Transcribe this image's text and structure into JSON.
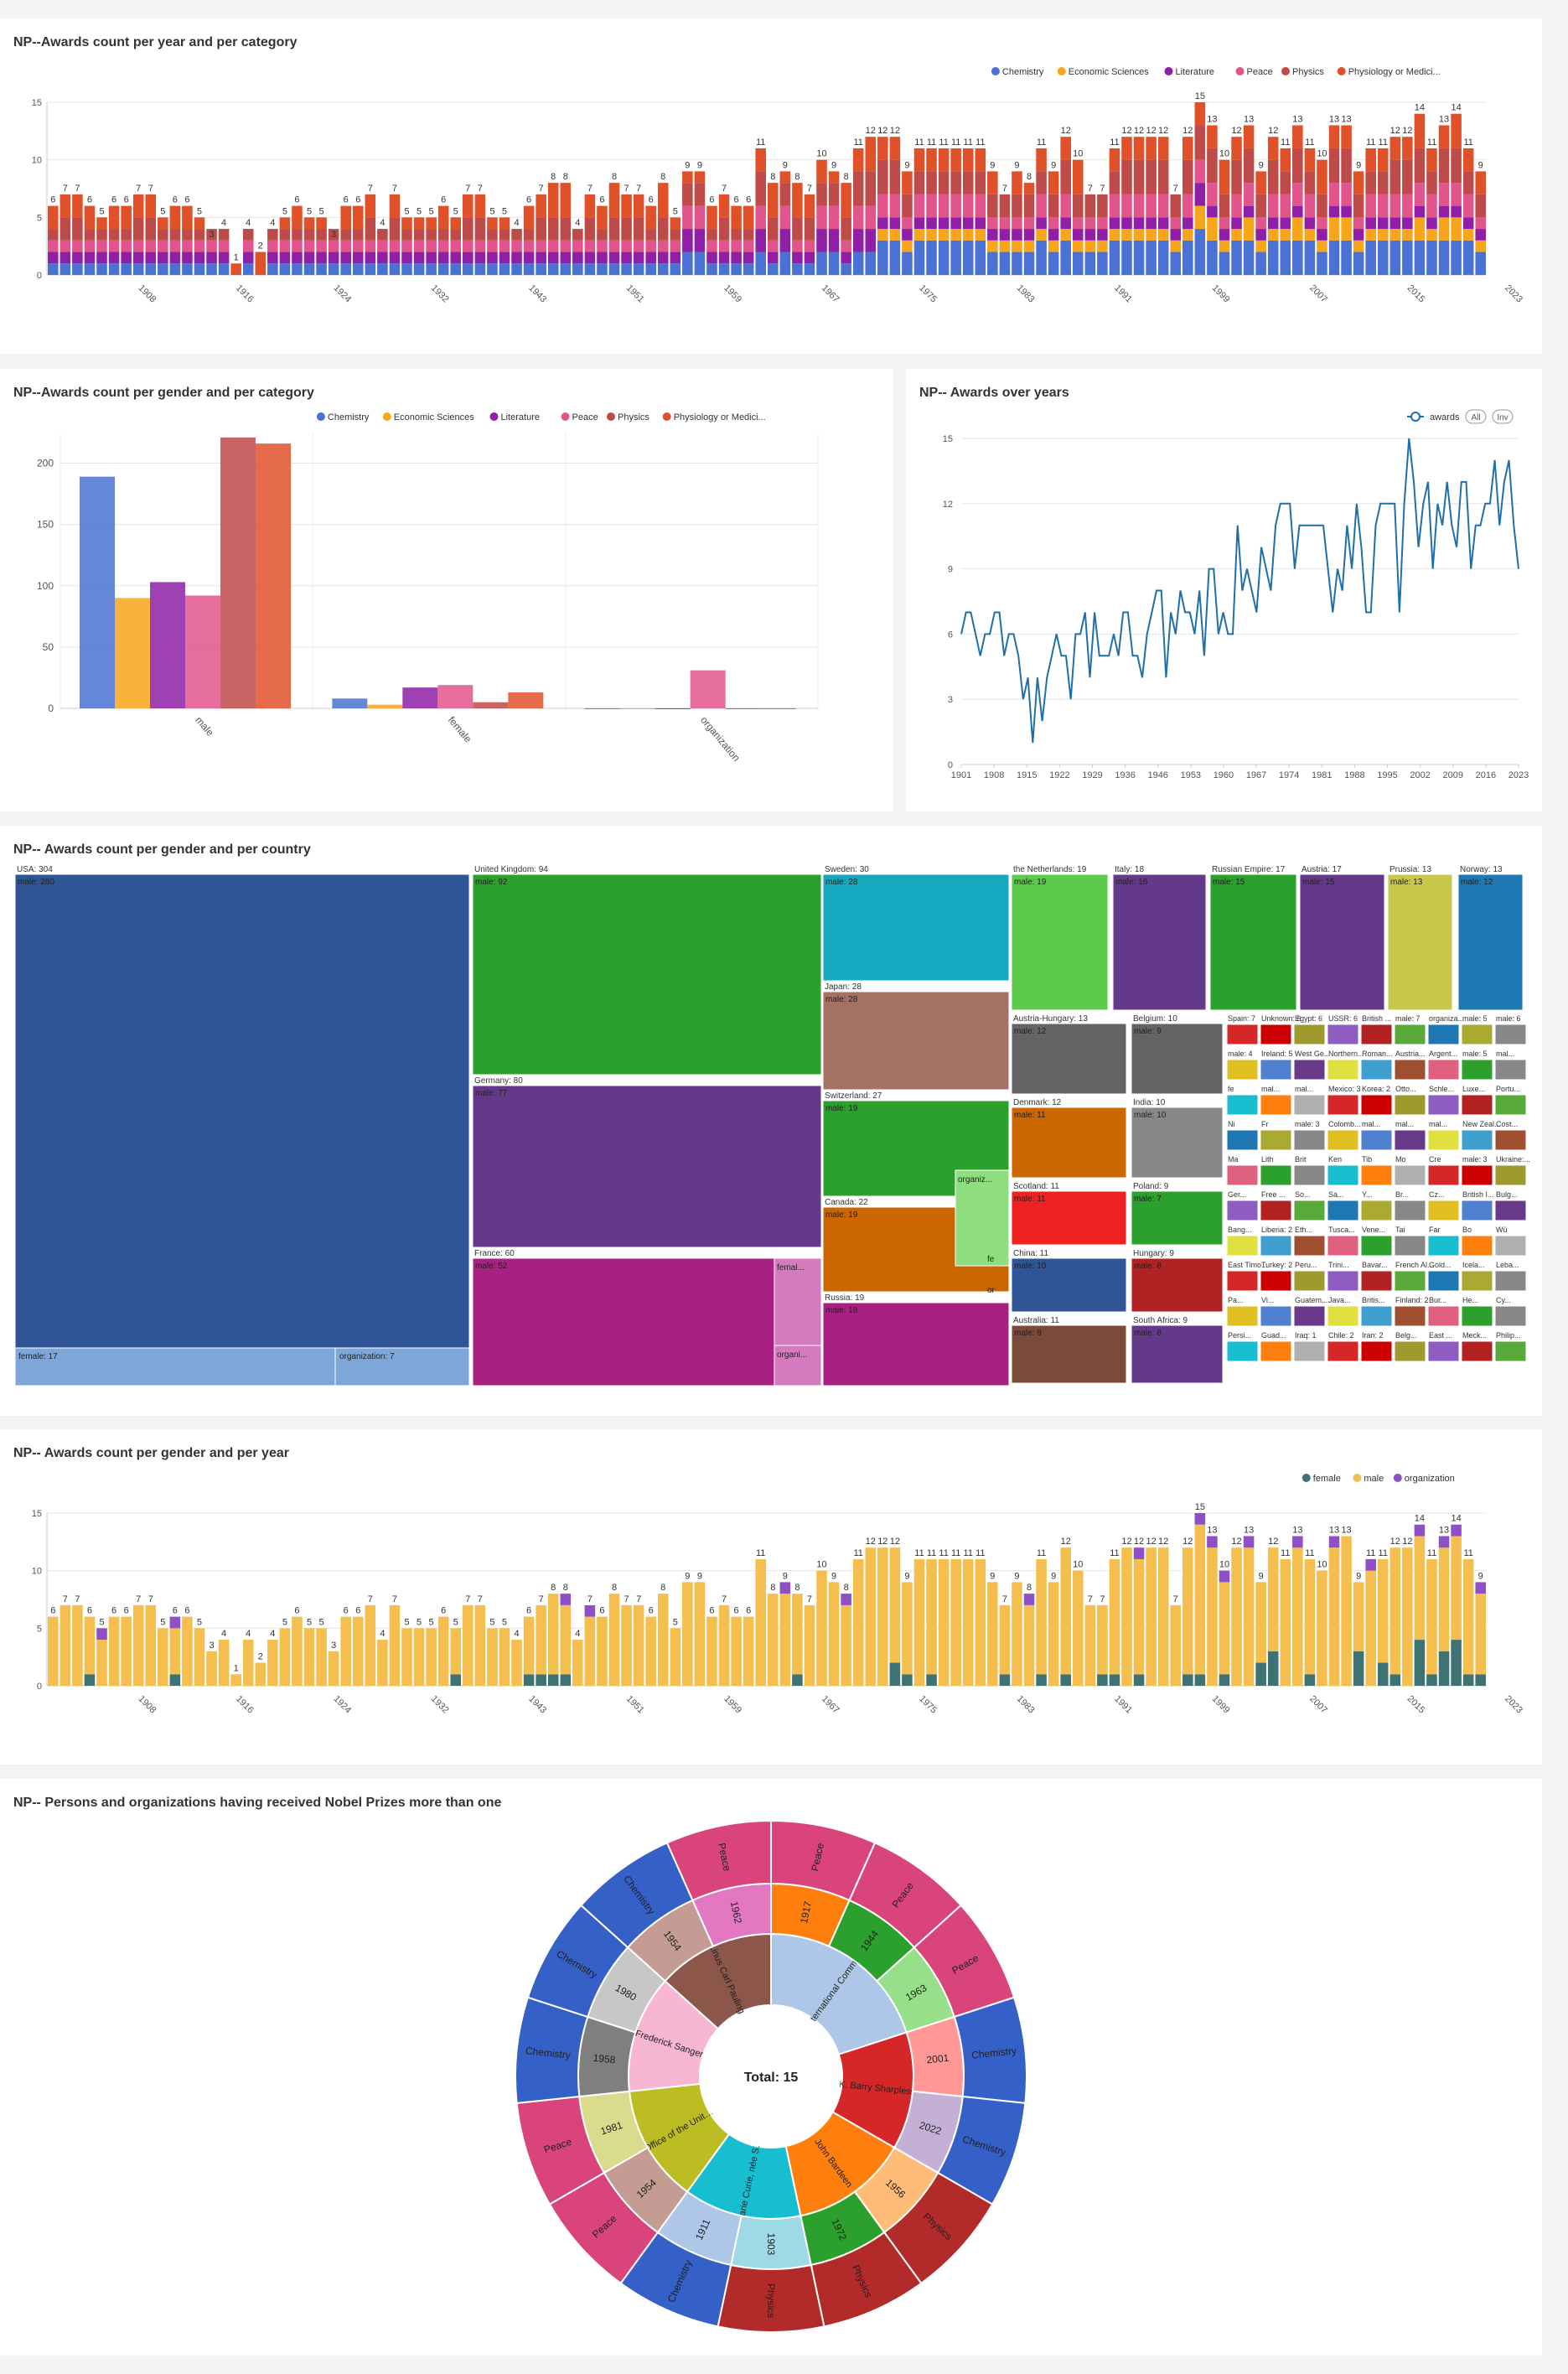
{
  "colors": {
    "Chemistry": "#4a72d4",
    "Economic Sciences": "#f7a61b",
    "Literature": "#8e1fa6",
    "Peace": "#e2558c",
    "Physics": "#bf4a4a",
    "Physiology or Medicine": "#e0512a",
    "female": "#3f7373",
    "male": "#f5bf4f",
    "organization": "#8f4fc7"
  },
  "chart_data": [
    {
      "id": "awards-year-category",
      "title": "NP--Awards count per year and per category",
      "type": "bar",
      "stacked": true,
      "legend": [
        "Chemistry",
        "Economic Sciences",
        "Literature",
        "Peace",
        "Physics",
        "Physiology or Medici..."
      ],
      "legend_placement": "top-right",
      "ylim": [
        0,
        15
      ],
      "yticks": [
        "0",
        "5",
        "10",
        "15"
      ],
      "xticks": [
        "1908",
        "1916",
        "1924",
        "1932",
        "1943",
        "1951",
        "1959",
        "1967",
        "1975",
        "1983",
        "1991",
        "1999",
        "2007",
        "2015",
        "2023"
      ],
      "totals": [
        6,
        7,
        7,
        6,
        5,
        6,
        6,
        7,
        7,
        5,
        6,
        6,
        5,
        3,
        4,
        1,
        4,
        2,
        4,
        5,
        6,
        5,
        5,
        3,
        6,
        6,
        7,
        4,
        7,
        5,
        5,
        5,
        6,
        5,
        7,
        7,
        5,
        5,
        4,
        6,
        7,
        8,
        8,
        4,
        7,
        6,
        8,
        7,
        7,
        6,
        8,
        5,
        9,
        9,
        6,
        7,
        6,
        6,
        11,
        8,
        9,
        8,
        7,
        10,
        9,
        8,
        11,
        12,
        12,
        12,
        9,
        11,
        11,
        11,
        11,
        11,
        11,
        9,
        7,
        9,
        8,
        11,
        9,
        12,
        10,
        7,
        7,
        11,
        12,
        12,
        12,
        12,
        7,
        12,
        15,
        13,
        10,
        12,
        13,
        9,
        12,
        11,
        13,
        11,
        10,
        13,
        13,
        9,
        11,
        11,
        12,
        12,
        14,
        11,
        13,
        14,
        11,
        9
      ]
    },
    {
      "id": "awards-gender-category",
      "title": "NP--Awards count per gender and per category",
      "type": "bar",
      "categories": [
        "male",
        "female",
        "organization"
      ],
      "legend": [
        "Chemistry",
        "Economic Sciences",
        "Literature",
        "Peace",
        "Physics",
        "Physiology or Medici..."
      ],
      "legend_placement": "top-right",
      "ylim": [
        0,
        225
      ],
      "yticks": [
        "0",
        "50",
        "100",
        "150",
        "200"
      ],
      "series": [
        {
          "name": "Chemistry",
          "values": [
            189,
            8,
            0
          ]
        },
        {
          "name": "Economic Sciences",
          "values": [
            90,
            3,
            0
          ]
        },
        {
          "name": "Literature",
          "values": [
            103,
            17,
            0
          ]
        },
        {
          "name": "Peace",
          "values": [
            92,
            19,
            31
          ]
        },
        {
          "name": "Physics",
          "values": [
            221,
            5,
            0
          ]
        },
        {
          "name": "Physiology or Medicine",
          "values": [
            216,
            13,
            0
          ]
        }
      ]
    },
    {
      "id": "awards-over-years",
      "title": "NP-- Awards over years",
      "type": "line",
      "legend": [
        "awards"
      ],
      "legend_buttons": [
        "All",
        "Inv"
      ],
      "ylim": [
        0,
        15
      ],
      "yticks": [
        "0",
        "3",
        "6",
        "9",
        "12",
        "15"
      ],
      "xticks": [
        "1901",
        "1908",
        "1915",
        "1922",
        "1929",
        "1936",
        "1946",
        "1953",
        "1960",
        "1967",
        "1974",
        "1981",
        "1988",
        "1995",
        "2002",
        "2009",
        "2016",
        "2023"
      ],
      "values": [
        6,
        7,
        7,
        6,
        5,
        6,
        6,
        7,
        7,
        5,
        6,
        6,
        5,
        3,
        4,
        1,
        4,
        2,
        4,
        5,
        6,
        5,
        5,
        3,
        6,
        6,
        7,
        4,
        7,
        5,
        5,
        5,
        6,
        5,
        7,
        7,
        5,
        5,
        4,
        6,
        7,
        8,
        8,
        4,
        7,
        6,
        8,
        7,
        7,
        6,
        8,
        5,
        9,
        9,
        6,
        7,
        6,
        6,
        11,
        8,
        9,
        8,
        7,
        10,
        9,
        8,
        11,
        12,
        12,
        12,
        9,
        11,
        11,
        11,
        11,
        11,
        11,
        9,
        7,
        9,
        8,
        11,
        9,
        12,
        10,
        7,
        7,
        11,
        12,
        12,
        12,
        12,
        7,
        12,
        15,
        13,
        10,
        12,
        13,
        9,
        12,
        11,
        13,
        11,
        10,
        13,
        13,
        9,
        11,
        11,
        12,
        12,
        14,
        11,
        13,
        14,
        11,
        9
      ]
    },
    {
      "id": "treemap-gender-country",
      "title": "NP-- Awards count per gender and per country",
      "type": "treemap",
      "big_boxes": [
        {
          "label": "USA: 304",
          "children": [
            "male: 280",
            "female: 17",
            "organization: 7"
          ],
          "color": "#2f5597"
        },
        {
          "label": "United Kingdom: 94",
          "children": [
            "male: 92"
          ],
          "color": "#2ca02c"
        },
        {
          "label": "Germany: 80",
          "children": [
            "male: 77"
          ],
          "color": "#65398a"
        },
        {
          "label": "France: 60",
          "children": [
            "male: 52",
            "femal...",
            "organi..."
          ],
          "color": "#a82082"
        },
        {
          "label": "Sweden: 30",
          "children": [
            "male: 28"
          ],
          "color": "#17a9bf"
        },
        {
          "label": "Japan: 28",
          "children": [
            "male: 28"
          ],
          "color": "#a57165"
        },
        {
          "label": "Switzerland: 27",
          "children": [
            "male: 19",
            "organiz..."
          ],
          "color": "#2ca02c"
        },
        {
          "label": "Canada: 22",
          "children": [
            "male: 19",
            "fe",
            "or"
          ],
          "color": "#cc6600"
        },
        {
          "label": "Russia: 19",
          "children": [
            "male: 18"
          ],
          "color": "#a82082"
        }
      ],
      "medium_boxes": [
        {
          "label": "the Netherlands: 19",
          "child": "male: 19",
          "color": "#5bc94a"
        },
        {
          "label": "Italy: 18",
          "child": "male: 16",
          "color": "#65398a"
        },
        {
          "label": "Russian Empire: 17",
          "child": "male: 15",
          "color": "#2ca02c"
        },
        {
          "label": "Austria: 17",
          "child": "male: 15",
          "color": "#65398a"
        },
        {
          "label": "Prussia: 13",
          "child": "male: 13",
          "color": "#c9c84a"
        },
        {
          "label": "Norway: 13",
          "child": "male: 12",
          "color": "#1f77b4"
        },
        {
          "label": "Austria-Hungary: 13",
          "child": "male: 12",
          "color": "#646464"
        },
        {
          "label": "Belgium: 10",
          "child": "male: 9",
          "color": "#646464"
        },
        {
          "label": "Denmark: 12",
          "child": "male: 11",
          "color": "#cc6600"
        },
        {
          "label": "India: 10",
          "child": "male: 10",
          "color": "#888888"
        },
        {
          "label": "Scotland: 11",
          "child": "male: 11",
          "color": "#ee2222"
        },
        {
          "label": "Poland: 9",
          "child": "male: 7",
          "color": "#2ca02c"
        },
        {
          "label": "China: 11",
          "child": "male: 10",
          "color": "#2f5597"
        },
        {
          "label": "Hungary: 9",
          "child": "male: 8",
          "color": "#b22222"
        },
        {
          "label": "Australia: 11",
          "child": "male: 9",
          "color": "#7a4a3a"
        },
        {
          "label": "South Africa: 9",
          "child": "male: 8",
          "color": "#65398a"
        }
      ],
      "small_labels": [
        "Spain: 7",
        "Unknown: 6",
        "Egypt: 6",
        "USSR: 6",
        "British ...",
        "male: 7",
        "organiza...",
        "male: 5",
        "male: 6",
        "male: 4",
        "Ireland: 5",
        "West Ge...",
        "Northern...",
        "Roman...",
        "Austria...",
        "Argent...",
        "male: 5",
        "mal...",
        "fe",
        "mal...",
        "mal...",
        "Mexico: 3",
        "Korea: 2",
        "Otto...",
        "Schle...",
        "Luxe...",
        "Portu...",
        "Ni",
        "Fr",
        "male: 3",
        "Colomb...",
        "mal...",
        "mal...",
        "mal...",
        "New Zeal...",
        "Cost...",
        "Ma",
        "Lith",
        "Brit",
        "Ken",
        "Tib",
        "Mo",
        "Cre",
        "male: 3",
        "Ukraine:...",
        "Ger...",
        "Free ...",
        "So...",
        "Sa...",
        "Y...",
        "Br...",
        "Cz...",
        "British I...",
        "Bulg...",
        "Bang...",
        "Liberia: 2",
        "Eth...",
        "Tusca...",
        "Vene...",
        "Tai",
        "Far",
        "Bo",
        "Wü",
        "East Timo...",
        "Turkey: 2",
        "Peru...",
        "Trini...",
        "Bavar...",
        "French Al...",
        "Gold...",
        "Icela...",
        "Leba...",
        "Pa...",
        "Vi...",
        "Guatem...",
        "Java...",
        "Britis...",
        "Finland: 2",
        "Bur...",
        "He...",
        "Cy...",
        "Persi...",
        "Guad...",
        "Iraq: 1",
        "Chile: 2",
        "Iran: 2",
        "Belg...",
        "East ...",
        "Meck...",
        "Philip..."
      ]
    },
    {
      "id": "awards-gender-year",
      "title": "NP-- Awards count per gender and per year",
      "type": "bar",
      "stacked": true,
      "legend": [
        "female",
        "male",
        "organization"
      ],
      "legend_placement": "top-right",
      "ylim": [
        0,
        15
      ],
      "yticks": [
        "0",
        "5",
        "10",
        "15"
      ],
      "xticks": [
        "1908",
        "1916",
        "1924",
        "1932",
        "1943",
        "1951",
        "1959",
        "1967",
        "1975",
        "1983",
        "1991",
        "1999",
        "2007",
        "2015",
        "2023"
      ],
      "female": [
        0,
        0,
        0,
        1,
        0,
        0,
        0,
        0,
        0,
        0,
        1,
        0,
        0,
        0,
        0,
        0,
        0,
        0,
        0,
        0,
        0,
        0,
        0,
        0,
        0,
        0,
        0,
        0,
        0,
        0,
        0,
        0,
        0,
        1,
        0,
        0,
        0,
        0,
        0,
        1,
        1,
        1,
        1,
        0,
        0,
        0,
        0,
        0,
        0,
        0,
        0,
        0,
        0,
        0,
        0,
        0,
        0,
        0,
        0,
        0,
        0,
        1,
        0,
        0,
        0,
        0,
        0,
        0,
        0,
        2,
        1,
        0,
        1,
        0,
        0,
        0,
        0,
        0,
        1,
        0,
        0,
        1,
        0,
        1,
        0,
        0,
        1,
        1,
        0,
        1,
        0,
        0,
        0,
        1,
        1,
        0,
        1,
        0,
        0,
        2,
        3,
        0,
        0,
        1,
        0,
        0,
        0,
        3,
        0,
        2,
        1,
        0,
        4,
        1,
        3,
        4,
        1,
        1
      ],
      "organization": [
        0,
        0,
        0,
        0,
        1,
        0,
        0,
        0,
        0,
        0,
        1,
        0,
        0,
        0,
        0,
        0,
        0,
        0,
        0,
        0,
        0,
        0,
        0,
        0,
        0,
        0,
        0,
        0,
        0,
        0,
        0,
        0,
        0,
        0,
        0,
        0,
        0,
        0,
        0,
        0,
        0,
        0,
        1,
        0,
        1,
        0,
        0,
        0,
        0,
        0,
        0,
        0,
        0,
        0,
        0,
        0,
        0,
        0,
        0,
        0,
        1,
        0,
        0,
        0,
        0,
        1,
        0,
        0,
        0,
        0,
        0,
        0,
        0,
        0,
        0,
        0,
        0,
        0,
        0,
        0,
        1,
        0,
        0,
        0,
        0,
        0,
        0,
        0,
        0,
        1,
        0,
        0,
        0,
        0,
        1,
        1,
        1,
        0,
        1,
        0,
        0,
        0,
        1,
        0,
        0,
        1,
        0,
        0,
        1,
        0,
        0,
        0,
        1,
        0,
        1,
        1,
        0,
        1
      ],
      "totals": [
        6,
        7,
        7,
        6,
        5,
        6,
        6,
        7,
        7,
        5,
        6,
        6,
        5,
        3,
        4,
        1,
        4,
        2,
        4,
        5,
        6,
        5,
        5,
        3,
        6,
        6,
        7,
        4,
        7,
        5,
        5,
        5,
        6,
        5,
        7,
        7,
        5,
        5,
        4,
        6,
        7,
        8,
        8,
        4,
        7,
        6,
        8,
        7,
        7,
        6,
        8,
        5,
        9,
        9,
        6,
        7,
        6,
        6,
        11,
        8,
        9,
        8,
        7,
        10,
        9,
        8,
        11,
        12,
        12,
        12,
        9,
        11,
        11,
        11,
        11,
        11,
        11,
        9,
        7,
        9,
        8,
        11,
        9,
        12,
        10,
        7,
        7,
        11,
        12,
        12,
        12,
        12,
        7,
        12,
        15,
        13,
        10,
        12,
        13,
        9,
        12,
        11,
        13,
        11,
        10,
        13,
        13,
        9,
        11,
        11,
        12,
        12,
        14,
        11,
        13,
        14,
        11,
        9
      ]
    },
    {
      "id": "sunburst-multiple-laureates",
      "title": "NP-- Persons and organizations having received Nobel Prizes more than one",
      "type": "sunburst",
      "center_label": "Total: 15",
      "inner": [
        {
          "name": "International Committee of the Red Cross",
          "color": "#aec7e8"
        },
        {
          "name": "K. Barry Sharpless",
          "color": "#d62728"
        },
        {
          "name": "John Bardeen",
          "color": "#ff7f0e"
        },
        {
          "name": "Marie Curie, née Sklodowska",
          "color": "#17becf"
        },
        {
          "name": "Office of the United Nations High Commissioner for Refugees",
          "color": "#bcbd22"
        },
        {
          "name": "Frederick Sanger",
          "color": "#f7b6d2"
        },
        {
          "name": "Linus Carl Pauling",
          "color": "#8c564b"
        }
      ],
      "middle": [
        "1917",
        "1944",
        "1963",
        "2001",
        "2022",
        "1956",
        "1972",
        "1903",
        "1911",
        "1954",
        "1981",
        "1958",
        "1980",
        "1954",
        "1962"
      ],
      "outer": [
        "Peace",
        "Peace",
        "Peace",
        "Chemistry",
        "Chemistry",
        "Physics",
        "Physics",
        "Physics",
        "Chemistry",
        "Peace",
        "Peace",
        "Chemistry",
        "Chemistry",
        "Chemistry",
        "Peace"
      ]
    }
  ]
}
